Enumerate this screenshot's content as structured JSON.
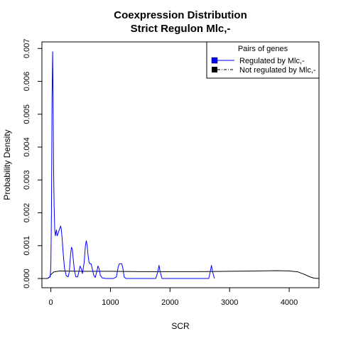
{
  "chart_data": {
    "type": "line",
    "title": "Coexpression Distribution",
    "subtitle": "Strict Regulon Mlc,-",
    "xlabel": "SCR",
    "ylabel": "Probability Density",
    "xlim": [
      -150,
      4500
    ],
    "ylim": [
      -0.00028,
      0.0072
    ],
    "x_ticks": [
      0,
      1000,
      2000,
      3000,
      4000
    ],
    "x_tick_labels": [
      "0",
      "1000",
      "2000",
      "3000",
      "4000"
    ],
    "y_ticks": [
      0,
      0.001,
      0.002,
      0.003,
      0.004,
      0.005,
      0.006,
      0.007
    ],
    "y_tick_labels": [
      "0.000",
      "0.001",
      "0.002",
      "0.003",
      "0.004",
      "0.005",
      "0.006",
      "0.007"
    ],
    "grid": false,
    "legend": {
      "title": "Pairs of genes",
      "position": "top-right",
      "entries": [
        "Regulated by  Mlc,-",
        "Not regulated by  Mlc,-"
      ]
    },
    "series": [
      {
        "name": "Regulated by  Mlc,-",
        "color": "#0000ff",
        "style": "solid",
        "points": [
          [
            -60,
            0
          ],
          [
            -10,
            5e-05
          ],
          [
            0,
            0.0004
          ],
          [
            10,
            0.002
          ],
          [
            20,
            0.0055
          ],
          [
            30,
            0.0069
          ],
          [
            38,
            0.0055
          ],
          [
            45,
            0.0035
          ],
          [
            55,
            0.0022
          ],
          [
            65,
            0.0015
          ],
          [
            75,
            0.0013
          ],
          [
            85,
            0.0014
          ],
          [
            95,
            0.00148
          ],
          [
            105,
            0.0013
          ],
          [
            118,
            0.00135
          ],
          [
            135,
            0.00145
          ],
          [
            145,
            0.0015
          ],
          [
            165,
            0.0016
          ],
          [
            175,
            0.0015
          ],
          [
            190,
            0.0012
          ],
          [
            210,
            0.0007
          ],
          [
            230,
            0.0003
          ],
          [
            260,
            8e-05
          ],
          [
            290,
            5e-05
          ],
          [
            310,
            0.0002
          ],
          [
            330,
            0.0007
          ],
          [
            345,
            0.00095
          ],
          [
            360,
            0.0009
          ],
          [
            375,
            0.0006
          ],
          [
            395,
            0.00025
          ],
          [
            420,
            5e-05
          ],
          [
            450,
            5e-05
          ],
          [
            470,
            0.0002
          ],
          [
            490,
            0.00038
          ],
          [
            510,
            0.0003
          ],
          [
            530,
            0.00015
          ],
          [
            560,
            0.0005
          ],
          [
            580,
            0.001
          ],
          [
            595,
            0.00115
          ],
          [
            610,
            0.001
          ],
          [
            625,
            0.0007
          ],
          [
            640,
            0.0005
          ],
          [
            655,
            0.00045
          ],
          [
            675,
            0.00045
          ],
          [
            695,
            0.0003
          ],
          [
            720,
            0.0001
          ],
          [
            745,
            3e-05
          ],
          [
            770,
            0.0002
          ],
          [
            790,
            0.00038
          ],
          [
            810,
            0.0003
          ],
          [
            830,
            0.0001
          ],
          [
            860,
            2e-05
          ],
          [
            920,
            0
          ],
          [
            1050,
            0
          ],
          [
            1100,
            5e-05
          ],
          [
            1130,
            0.00035
          ],
          [
            1150,
            0.00045
          ],
          [
            1190,
            0.00045
          ],
          [
            1210,
            0.0003
          ],
          [
            1230,
            5e-05
          ],
          [
            1260,
            0
          ],
          [
            1760,
            0
          ],
          [
            1795,
            0.0002
          ],
          [
            1815,
            0.0004
          ],
          [
            1835,
            0.0002
          ],
          [
            1865,
            0
          ],
          [
            2650,
            0
          ],
          [
            2675,
            0.0002
          ],
          [
            2695,
            0.0004
          ],
          [
            2715,
            0.0002
          ],
          [
            2745,
            0
          ]
        ]
      },
      {
        "name": "Not regulated by  Mlc,-",
        "color": "#000000",
        "style": "solid",
        "points": [
          [
            -150,
            0
          ],
          [
            -60,
            0
          ],
          [
            -20,
            5e-05
          ],
          [
            0,
            0.00012
          ],
          [
            50,
            0.0002
          ],
          [
            150,
            0.00023
          ],
          [
            500,
            0.00022
          ],
          [
            1000,
            0.00022
          ],
          [
            1500,
            0.00021
          ],
          [
            2000,
            0.00021
          ],
          [
            2500,
            0.00021
          ],
          [
            3000,
            0.00022
          ],
          [
            3500,
            0.00023
          ],
          [
            3800,
            0.00024
          ],
          [
            4000,
            0.00023
          ],
          [
            4150,
            0.0002
          ],
          [
            4250,
            0.00013
          ],
          [
            4350,
            5e-05
          ],
          [
            4420,
            1e-05
          ],
          [
            4500,
            0
          ]
        ]
      }
    ]
  }
}
